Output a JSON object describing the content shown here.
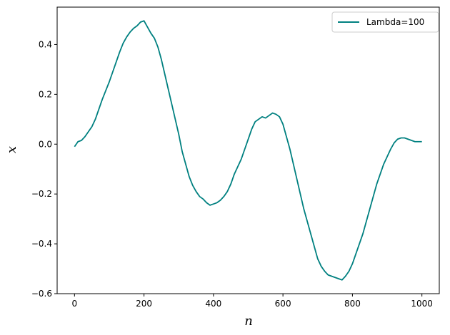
{
  "chart_data": {
    "type": "line",
    "title": "",
    "xlabel": "n",
    "ylabel": "x",
    "xlim": [
      -50,
      1050
    ],
    "ylim": [
      -0.6,
      0.55
    ],
    "xticks": [
      0,
      200,
      400,
      600,
      800,
      1000
    ],
    "yticks": [
      -0.6,
      -0.4,
      -0.2,
      0.0,
      0.2,
      0.4
    ],
    "xtick_labels": [
      "0",
      "200",
      "400",
      "600",
      "800",
      "1000"
    ],
    "ytick_labels": [
      "−0.6",
      "−0.4",
      "−0.2",
      "0.0",
      "0.2",
      "0.4"
    ],
    "grid": false,
    "legend_position": "top-right",
    "colors": {
      "series": "#008080",
      "axes": "#000000",
      "legend_border": "#cccccc"
    },
    "series": [
      {
        "name": "Lambda=100",
        "x": [
          0,
          10,
          20,
          30,
          40,
          50,
          60,
          70,
          80,
          90,
          100,
          110,
          120,
          130,
          140,
          150,
          160,
          170,
          180,
          190,
          200,
          210,
          220,
          230,
          240,
          250,
          260,
          270,
          280,
          290,
          300,
          310,
          320,
          330,
          340,
          350,
          360,
          370,
          380,
          390,
          400,
          410,
          420,
          430,
          440,
          450,
          460,
          470,
          480,
          490,
          500,
          510,
          520,
          530,
          540,
          550,
          560,
          570,
          580,
          590,
          600,
          610,
          620,
          630,
          640,
          650,
          660,
          670,
          680,
          690,
          700,
          710,
          720,
          730,
          740,
          750,
          760,
          770,
          780,
          790,
          800,
          810,
          820,
          830,
          840,
          850,
          860,
          870,
          880,
          890,
          900,
          910,
          920,
          930,
          940,
          950,
          960,
          970,
          980,
          990,
          1000
        ],
        "y": [
          -0.01,
          0.01,
          0.015,
          0.03,
          0.05,
          0.07,
          0.1,
          0.14,
          0.18,
          0.215,
          0.25,
          0.29,
          0.33,
          0.37,
          0.405,
          0.43,
          0.45,
          0.465,
          0.475,
          0.49,
          0.495,
          0.47,
          0.445,
          0.425,
          0.39,
          0.34,
          0.28,
          0.22,
          0.16,
          0.1,
          0.04,
          -0.03,
          -0.08,
          -0.13,
          -0.165,
          -0.19,
          -0.21,
          -0.22,
          -0.235,
          -0.245,
          -0.24,
          -0.235,
          -0.225,
          -0.21,
          -0.19,
          -0.16,
          -0.12,
          -0.09,
          -0.06,
          -0.02,
          0.02,
          0.06,
          0.09,
          0.1,
          0.11,
          0.105,
          0.115,
          0.125,
          0.12,
          0.11,
          0.08,
          0.03,
          -0.02,
          -0.08,
          -0.14,
          -0.2,
          -0.26,
          -0.31,
          -0.36,
          -0.41,
          -0.46,
          -0.49,
          -0.51,
          -0.525,
          -0.53,
          -0.535,
          -0.54,
          -0.545,
          -0.53,
          -0.51,
          -0.48,
          -0.44,
          -0.4,
          -0.36,
          -0.31,
          -0.26,
          -0.21,
          -0.16,
          -0.12,
          -0.08,
          -0.05,
          -0.02,
          0.005,
          0.02,
          0.025,
          0.025,
          0.02,
          0.015,
          0.01,
          0.01,
          0.01
        ]
      }
    ]
  }
}
